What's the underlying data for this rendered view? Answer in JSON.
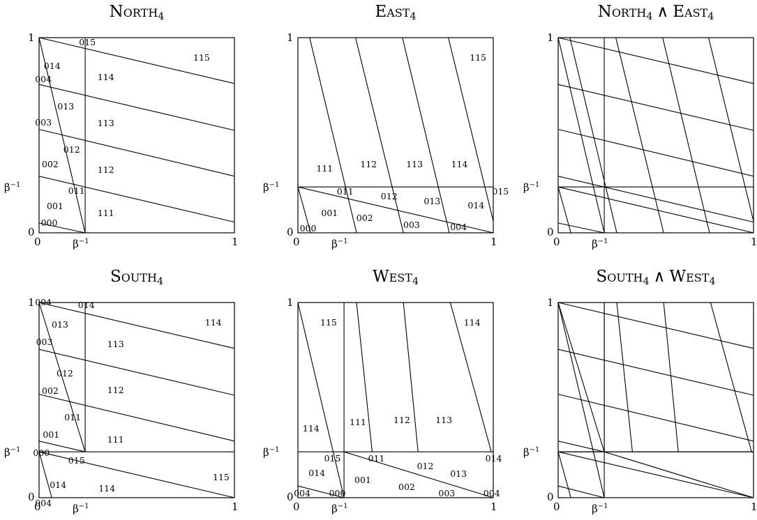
{
  "axis": {
    "zero": "0",
    "one": "1",
    "beta": "β",
    "inv": "−1"
  },
  "panels": [
    {
      "id": "north",
      "title_parts": [
        {
          "t": "North",
          "sc": true
        },
        {
          "t": "4",
          "sub": true
        }
      ],
      "labels": [
        [
          "000",
          0.02,
          0.05
        ],
        [
          "015",
          0.215,
          0.975
        ],
        [
          "014",
          0.035,
          0.855
        ],
        [
          "004",
          -0.01,
          0.785
        ],
        [
          "115",
          0.8,
          0.895
        ],
        [
          "114",
          0.31,
          0.795
        ],
        [
          "013",
          0.105,
          0.645
        ],
        [
          "003",
          -0.01,
          0.565
        ],
        [
          "113",
          0.31,
          0.56
        ],
        [
          "012",
          0.135,
          0.425
        ],
        [
          "002",
          0.025,
          0.35
        ],
        [
          "112",
          0.31,
          0.32
        ],
        [
          "011",
          0.16,
          0.215
        ],
        [
          "001",
          0.05,
          0.135
        ],
        [
          "111",
          0.31,
          0.1
        ]
      ]
    },
    {
      "id": "east",
      "title_parts": [
        {
          "t": "East",
          "sc": true
        },
        {
          "t": "4",
          "sub": true
        }
      ],
      "labels": [
        [
          "000",
          0.02,
          0.02
        ],
        [
          "001",
          0.13,
          0.1
        ],
        [
          "002",
          0.31,
          0.075
        ],
        [
          "003",
          0.55,
          0.04
        ],
        [
          "004",
          0.79,
          0.03
        ],
        [
          "011",
          0.21,
          0.21
        ],
        [
          "012",
          0.435,
          0.185
        ],
        [
          "013",
          0.655,
          0.16
        ],
        [
          "014",
          0.88,
          0.14
        ],
        [
          "015",
          1.005,
          0.21
        ],
        [
          "111",
          0.105,
          0.33
        ],
        [
          "112",
          0.33,
          0.35
        ],
        [
          "113",
          0.565,
          0.35
        ],
        [
          "114",
          0.795,
          0.35
        ],
        [
          "115",
          0.89,
          0.895
        ]
      ]
    },
    {
      "id": "ne",
      "title_parts": [
        {
          "t": "North",
          "sc": true
        },
        {
          "t": "4",
          "sub": true
        },
        {
          "t": "∧",
          "wedge": true
        },
        {
          "t": "East",
          "sc": true
        },
        {
          "t": "4",
          "sub": true
        }
      ],
      "labels": []
    },
    {
      "id": "south",
      "title_parts": [
        {
          "t": "South",
          "sc": true
        },
        {
          "t": "4",
          "sub": true
        }
      ],
      "labels": [
        [
          "004",
          -0.01,
          1.0
        ],
        [
          "014",
          0.21,
          0.985
        ],
        [
          "013",
          0.075,
          0.885
        ],
        [
          "003",
          -0.005,
          0.795
        ],
        [
          "113",
          0.36,
          0.785
        ],
        [
          "012",
          0.1,
          0.635
        ],
        [
          "002",
          0.025,
          0.545
        ],
        [
          "112",
          0.36,
          0.55
        ],
        [
          "011",
          0.14,
          0.41
        ],
        [
          "001",
          0.03,
          0.32
        ],
        [
          "111",
          0.36,
          0.295
        ],
        [
          "000",
          -0.02,
          0.23
        ],
        [
          "015",
          0.16,
          0.19
        ],
        [
          "014",
          0.065,
          0.065
        ],
        [
          "114",
          0.315,
          0.045
        ],
        [
          "115",
          0.9,
          0.105
        ],
        [
          "004",
          -0.01,
          -0.03
        ],
        [
          "114",
          0.86,
          0.895
        ]
      ]
    },
    {
      "id": "west",
      "title_parts": [
        {
          "t": "West",
          "sc": true
        },
        {
          "t": "4",
          "sub": true
        }
      ],
      "labels": [
        [
          "004",
          -0.01,
          0.02
        ],
        [
          "000",
          0.17,
          0.02
        ],
        [
          "014",
          0.065,
          0.125
        ],
        [
          "001",
          0.3,
          0.09
        ],
        [
          "002",
          0.525,
          0.055
        ],
        [
          "003",
          0.73,
          0.02
        ],
        [
          "004",
          0.96,
          0.02
        ],
        [
          "015",
          0.145,
          0.2
        ],
        [
          "011",
          0.37,
          0.2
        ],
        [
          "012",
          0.62,
          0.16
        ],
        [
          "013",
          0.79,
          0.12
        ],
        [
          "014",
          0.97,
          0.2
        ],
        [
          "114",
          0.035,
          0.355
        ],
        [
          "111",
          0.275,
          0.385
        ],
        [
          "112",
          0.5,
          0.395
        ],
        [
          "113",
          0.715,
          0.395
        ],
        [
          "114",
          0.86,
          0.895
        ],
        [
          "115",
          0.125,
          0.895
        ]
      ]
    },
    {
      "id": "sw",
      "title_parts": [
        {
          "t": "South",
          "sc": true
        },
        {
          "t": "4",
          "sub": true
        },
        {
          "t": "∧",
          "wedge": true
        },
        {
          "t": "West",
          "sc": true
        },
        {
          "t": "4",
          "sub": true
        }
      ],
      "labels": []
    }
  ]
}
